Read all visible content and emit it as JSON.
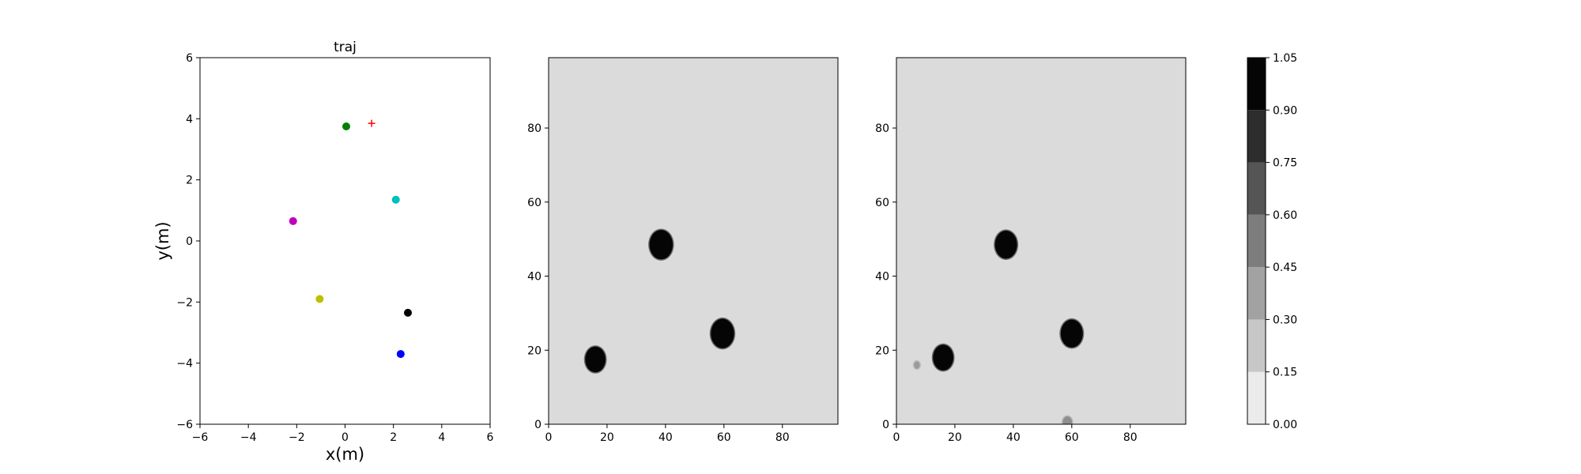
{
  "chart_data": [
    {
      "type": "scatter",
      "title": "traj",
      "xlabel": "x(m)",
      "ylabel": "y(m)",
      "xlim": [
        -6,
        6
      ],
      "ylim": [
        -6,
        6
      ],
      "xticks": [
        -6,
        -4,
        -2,
        0,
        2,
        4,
        6
      ],
      "yticks": [
        -6,
        -4,
        -2,
        0,
        2,
        4,
        6
      ],
      "grid": false,
      "points": [
        {
          "x": 0.05,
          "y": 3.75,
          "color": "#008000",
          "marker": "dot"
        },
        {
          "x": 2.1,
          "y": 1.35,
          "color": "#00bfbf",
          "marker": "dot"
        },
        {
          "x": -2.15,
          "y": 0.65,
          "color": "#bf00bf",
          "marker": "dot"
        },
        {
          "x": -1.05,
          "y": -1.9,
          "color": "#bfbf00",
          "marker": "dot"
        },
        {
          "x": 2.6,
          "y": -2.35,
          "color": "#000000",
          "marker": "dot"
        },
        {
          "x": 2.3,
          "y": -3.7,
          "color": "#0000ff",
          "marker": "dot"
        },
        {
          "x": 1.1,
          "y": 3.85,
          "color": "#ff0000",
          "marker": "plus"
        }
      ]
    },
    {
      "type": "heatmap",
      "title": "",
      "xlim": [
        0,
        99
      ],
      "ylim": [
        0,
        99
      ],
      "xticks": [
        0,
        20,
        40,
        60,
        80
      ],
      "yticks": [
        0,
        20,
        40,
        60,
        80
      ],
      "background_level": 0.07,
      "blobs": [
        {
          "x": 38.5,
          "y": 48.5,
          "r": 4.0,
          "level": 1.0
        },
        {
          "x": 16.0,
          "y": 17.5,
          "r": 3.5,
          "level": 1.0
        },
        {
          "x": 59.5,
          "y": 24.5,
          "r": 4.0,
          "level": 1.0
        }
      ]
    },
    {
      "type": "heatmap",
      "title": "",
      "xlim": [
        0,
        99
      ],
      "ylim": [
        0,
        99
      ],
      "xticks": [
        0,
        20,
        40,
        60,
        80
      ],
      "yticks": [
        0,
        20,
        40,
        60,
        80
      ],
      "background_level": 0.07,
      "blobs": [
        {
          "x": 37.5,
          "y": 48.5,
          "r": 3.8,
          "level": 1.0
        },
        {
          "x": 16.0,
          "y": 18.0,
          "r": 3.5,
          "level": 1.0
        },
        {
          "x": 60.0,
          "y": 24.5,
          "r": 3.8,
          "level": 1.0
        },
        {
          "x": 7.0,
          "y": 16.0,
          "r": 1.0,
          "level": 0.35
        },
        {
          "x": 58.5,
          "y": 0.5,
          "r": 1.6,
          "level": 0.4
        }
      ]
    },
    {
      "type": "colorbar",
      "title": "",
      "levels": [
        0.0,
        0.15,
        0.3,
        0.45,
        0.6,
        0.75,
        0.9,
        1.05
      ],
      "tick_labels": [
        "0.00",
        "0.15",
        "0.30",
        "0.45",
        "0.60",
        "0.75",
        "0.90",
        "1.05"
      ],
      "colors": [
        "#ebebeb",
        "#c7c7c7",
        "#a2a2a2",
        "#7d7d7d",
        "#555555",
        "#2d2d2d",
        "#050505"
      ]
    }
  ]
}
